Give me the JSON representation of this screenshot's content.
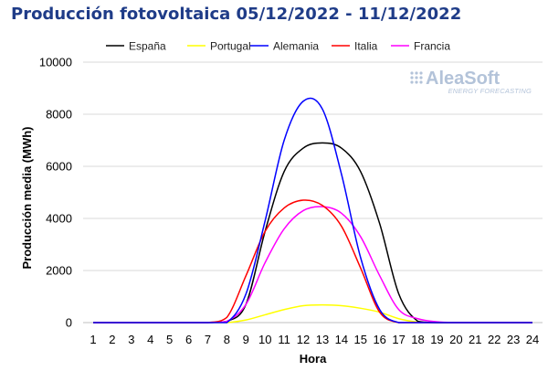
{
  "chart_data": {
    "type": "line",
    "title": "Producción fotovoltaica 05/12/2022 - 11/12/2022",
    "xlabel": "Hora",
    "ylabel": "Producción media (MWh)",
    "x": [
      1,
      2,
      3,
      4,
      5,
      6,
      7,
      8,
      9,
      10,
      11,
      12,
      13,
      14,
      15,
      16,
      17,
      18,
      19,
      20,
      21,
      22,
      23,
      24
    ],
    "xlim": [
      1,
      24
    ],
    "ylim": [
      0,
      10000
    ],
    "yticks": [
      0,
      2000,
      4000,
      6000,
      8000,
      10000
    ],
    "grid": "horizontal",
    "legend_position": "top",
    "series": [
      {
        "name": "España",
        "color": "#000000",
        "values": [
          0,
          0,
          0,
          0,
          0,
          0,
          0,
          50,
          700,
          3500,
          5800,
          6700,
          6900,
          6700,
          5800,
          3800,
          1100,
          50,
          0,
          0,
          0,
          0,
          0,
          0
        ]
      },
      {
        "name": "Portugal",
        "color": "#ffff00",
        "values": [
          0,
          0,
          0,
          0,
          0,
          0,
          0,
          0,
          100,
          300,
          500,
          650,
          680,
          650,
          550,
          400,
          150,
          20,
          0,
          0,
          0,
          0,
          0,
          0
        ]
      },
      {
        "name": "Alemania",
        "color": "#0000ff",
        "values": [
          0,
          0,
          0,
          0,
          0,
          0,
          0,
          0,
          1100,
          3900,
          7000,
          8500,
          8200,
          5700,
          2500,
          500,
          0,
          0,
          0,
          0,
          0,
          0,
          0,
          0
        ]
      },
      {
        "name": "Italia",
        "color": "#ff0000",
        "values": [
          0,
          0,
          0,
          0,
          0,
          0,
          0,
          200,
          1800,
          3500,
          4400,
          4700,
          4500,
          3700,
          2100,
          400,
          0,
          0,
          0,
          0,
          0,
          0,
          0,
          0
        ]
      },
      {
        "name": "Francia",
        "color": "#ff00ff",
        "values": [
          0,
          0,
          0,
          0,
          0,
          0,
          0,
          50,
          700,
          2300,
          3600,
          4300,
          4450,
          4200,
          3300,
          1800,
          500,
          150,
          30,
          0,
          0,
          0,
          0,
          0
        ]
      }
    ],
    "watermark": {
      "brand": "AleaSoft",
      "tagline": "ENERGY FORECASTING"
    }
  }
}
